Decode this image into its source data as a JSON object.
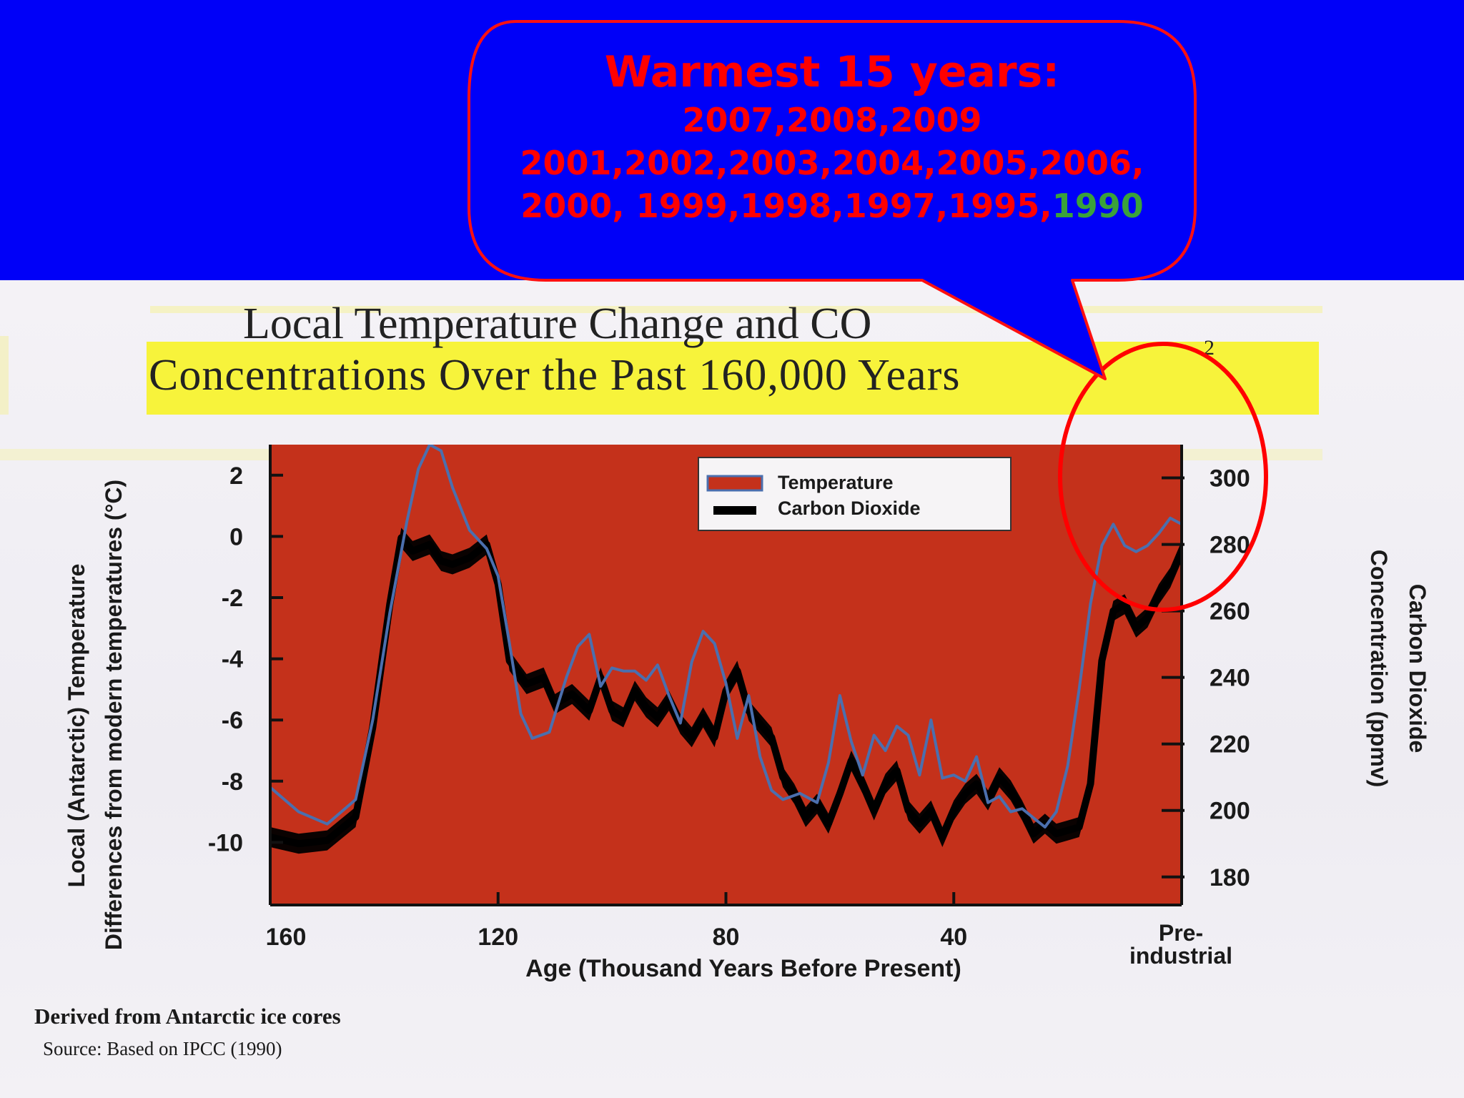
{
  "callout": {
    "heading": "Warmest 15 years:",
    "line1": "2007,2008,2009",
    "line2": "2001,2002,2003,2004,2005,2006,",
    "line3_red": "2000, 1999,1998,1997,1995,",
    "line3_green": "1990",
    "colors": {
      "bubble_fill": "#0000f8",
      "bubble_stroke": "#ff1010",
      "text": "#ff0000",
      "highlight_text": "#3aa23a"
    }
  },
  "figure": {
    "title_line1": "Local Temperature Change and CO",
    "title_co2_subscript": "2",
    "title_line2": "Concentrations Over the Past 160,000 Years",
    "footnote": "Derived from Antarctic ice cores",
    "source": "Source: Based on IPCC (1990)"
  },
  "chart_data": {
    "type": "line",
    "x_label": "Age (Thousand Years Before Present)",
    "x_ticks": [
      "160",
      "120",
      "80",
      "40",
      "Pre-industrial"
    ],
    "x_tick_values": [
      160,
      120,
      80,
      40,
      0
    ],
    "xlim": [
      160,
      0
    ],
    "y_left_label_line1": "Local (Antarctic) Temperature",
    "y_left_label_line2": "Differences from modern temperatures (°C)",
    "y_left_ticks": [
      2,
      0,
      -2,
      -4,
      -6,
      -8,
      -10
    ],
    "y_left_lim": [
      -12,
      3
    ],
    "y_right_label_line1": "Carbon Dioxide",
    "y_right_label_line2": "Concentration (ppmv)",
    "y_right_ticks": [
      300,
      280,
      260,
      240,
      220,
      200,
      180
    ],
    "y_right_lim": [
      172,
      310
    ],
    "legend_position": "top-right",
    "plot_background": "#c4311b",
    "series": [
      {
        "name": "Temperature",
        "color": "#4b6fae",
        "x": [
          160,
          155,
          150,
          145,
          142,
          139,
          136,
          134,
          132,
          130,
          128,
          125,
          122,
          120,
          118,
          116,
          114,
          111,
          108,
          106,
          104,
          102,
          100,
          98,
          96,
          94,
          92,
          90,
          88,
          86,
          84,
          82,
          80,
          78,
          76,
          74,
          72,
          70,
          67,
          64,
          62,
          60,
          58,
          56,
          54,
          52,
          50,
          48,
          46,
          44,
          42,
          40,
          38,
          36,
          34,
          32,
          30,
          28,
          26,
          24,
          22,
          20,
          18,
          16,
          14,
          12,
          10,
          8,
          6,
          4,
          2,
          0
        ],
        "y": [
          -8.2,
          -9.0,
          -9.4,
          -8.6,
          -6.0,
          -2.5,
          0.5,
          2.2,
          3.0,
          2.8,
          1.6,
          0.2,
          -0.4,
          -1.3,
          -3.5,
          -5.8,
          -6.6,
          -6.4,
          -4.6,
          -3.6,
          -3.2,
          -4.9,
          -4.3,
          -4.4,
          -4.4,
          -4.7,
          -4.2,
          -5.2,
          -6.1,
          -4.1,
          -3.1,
          -3.5,
          -4.8,
          -6.6,
          -5.2,
          -7.2,
          -8.3,
          -8.6,
          -8.4,
          -8.7,
          -7.4,
          -5.2,
          -6.7,
          -7.8,
          -6.5,
          -7.0,
          -6.2,
          -6.5,
          -7.8,
          -6.0,
          -7.9,
          -7.8,
          -8.0,
          -7.2,
          -8.7,
          -8.5,
          -9.0,
          -8.9,
          -9.2,
          -9.5,
          -9.0,
          -7.5,
          -5.0,
          -2.2,
          -0.3,
          0.4,
          -0.3,
          -0.5,
          -0.3,
          0.1,
          0.6,
          0.4
        ]
      },
      {
        "name": "Carbon Dioxide",
        "color": "#000000",
        "x": [
          160,
          155,
          150,
          145,
          142,
          139,
          137,
          135,
          132,
          130,
          128,
          125,
          122,
          120,
          118,
          115,
          112,
          110,
          107,
          104,
          102,
          100,
          98,
          96,
          94,
          92,
          90,
          88,
          86,
          84,
          82,
          80,
          78,
          76,
          74,
          72,
          70,
          68,
          66,
          64,
          62,
          60,
          58,
          56,
          54,
          52,
          50,
          48,
          46,
          44,
          42,
          40,
          38,
          36,
          34,
          32,
          30,
          28,
          26,
          24,
          22,
          20,
          18,
          16,
          14,
          12,
          10,
          8,
          6,
          4,
          2,
          0
        ],
        "y": [
          192,
          190,
          191,
          198,
          225,
          262,
          282,
          278,
          280,
          275,
          274,
          276,
          280,
          268,
          245,
          238,
          240,
          232,
          235,
          230,
          240,
          230,
          228,
          236,
          231,
          228,
          233,
          226,
          222,
          228,
          222,
          236,
          242,
          230,
          226,
          222,
          210,
          205,
          198,
          202,
          196,
          205,
          215,
          208,
          200,
          208,
          212,
          200,
          196,
          200,
          192,
          200,
          205,
          208,
          203,
          210,
          206,
          200,
          193,
          196,
          193,
          194,
          195,
          208,
          245,
          260,
          262,
          255,
          258,
          265,
          270,
          278
        ]
      }
    ]
  }
}
